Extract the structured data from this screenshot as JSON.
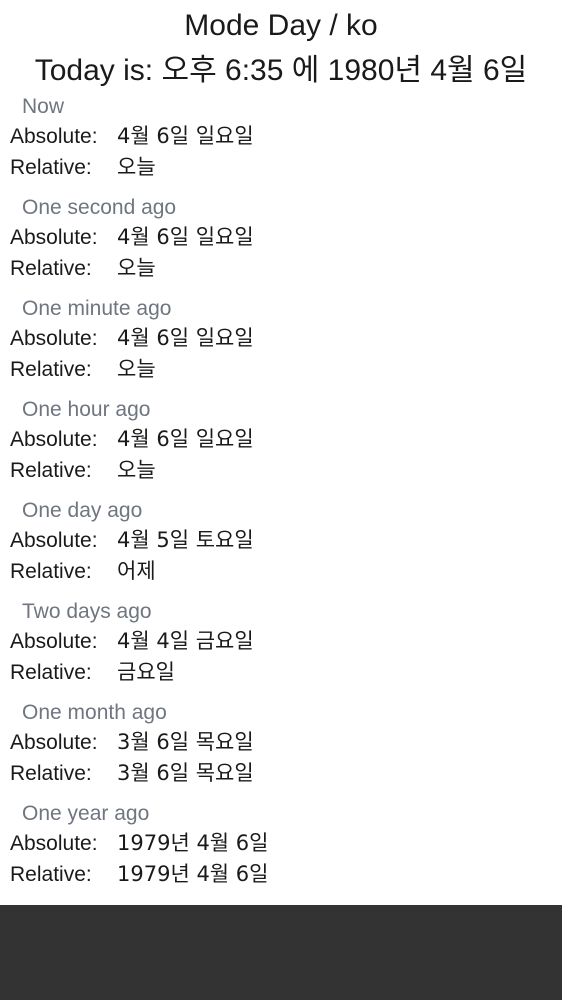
{
  "header": {
    "mode_title": "Mode Day / ko",
    "today": "Today is: 오후 6:35 에 1980년 4월 6일"
  },
  "labels": {
    "absolute": "Absolute:",
    "relative": "Relative:"
  },
  "entries": [
    {
      "title": "Now",
      "absolute": "4월 6일 일요일",
      "relative": "오늘"
    },
    {
      "title": "One second ago",
      "absolute": "4월 6일 일요일",
      "relative": "오늘"
    },
    {
      "title": "One minute ago",
      "absolute": "4월 6일 일요일",
      "relative": "오늘"
    },
    {
      "title": "One hour ago",
      "absolute": "4월 6일 일요일",
      "relative": "오늘"
    },
    {
      "title": "One day ago",
      "absolute": "4월 5일 토요일",
      "relative": "어제"
    },
    {
      "title": "Two days ago",
      "absolute": "4월 4일 금요일",
      "relative": "금요일"
    },
    {
      "title": "One month ago",
      "absolute": "3월 6일 목요일",
      "relative": "3월 6일 목요일"
    },
    {
      "title": "One year ago",
      "absolute": "1979년 4월 6일",
      "relative": "1979년 4월 6일"
    }
  ],
  "colors": {
    "background": "#ffffff",
    "text": "#1a1a1a",
    "entry_title": "#6f7680",
    "navigation_bar": "#333333"
  }
}
